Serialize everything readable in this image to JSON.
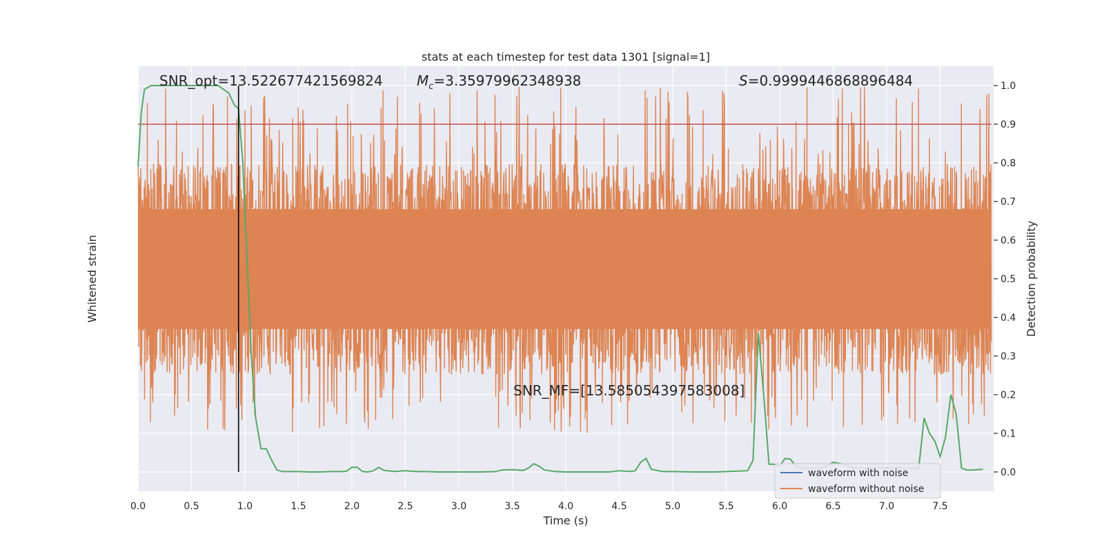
{
  "chart_data": {
    "type": "line",
    "title": "stats at each timestep for test data 1301 [signal=1]",
    "xlabel": "Time (s)",
    "ylabel_left": "Whitened strain",
    "ylabel_right": "Detection probability",
    "xlim": [
      0.0,
      8.0
    ],
    "ylim_right": [
      -0.05,
      1.05
    ],
    "x_ticks": [
      0.0,
      0.5,
      1.0,
      1.5,
      2.0,
      2.5,
      3.0,
      3.5,
      4.0,
      4.5,
      5.0,
      5.5,
      6.0,
      6.5,
      7.0,
      7.5
    ],
    "x_tick_labels": [
      "0.0",
      "0.5",
      "1.0",
      "1.5",
      "2.0",
      "2.5",
      "3.0",
      "3.5",
      "4.0",
      "4.5",
      "5.0",
      "5.5",
      "6.0",
      "6.5",
      "7.0",
      "7.5"
    ],
    "y_right_ticks": [
      0.0,
      0.1,
      0.2,
      0.3,
      0.4,
      0.5,
      0.6,
      0.7,
      0.8,
      0.9,
      1.0
    ],
    "y_right_tick_labels": [
      "0.0",
      "0.1",
      "0.2",
      "0.3",
      "0.4",
      "0.5",
      "0.6",
      "0.7",
      "0.8",
      "0.9",
      "1.0"
    ],
    "grid": true,
    "legend_position": "bottom-right",
    "annotations": {
      "snr_opt": "SNR_opt=13.522677421569824",
      "mc_symbol": "M",
      "mc_sub": "c",
      "mc_value": "=3.35979962348938",
      "s_symbol": "S",
      "s_value": "=0.9999446868896484",
      "snr_mf": "SNR_MF=[13.585054397583008]"
    },
    "threshold": 0.9,
    "vertical_marker_x": 0.94,
    "strain_series": [
      {
        "name": "waveform with noise",
        "color": "#4c72b0"
      },
      {
        "name": "waveform without noise",
        "color": "#dd8452"
      }
    ],
    "probability_series": {
      "color": "#55a868",
      "x": [
        0.0,
        0.03,
        0.06,
        0.12,
        0.2,
        0.3,
        0.4,
        0.5,
        0.6,
        0.7,
        0.75,
        0.8,
        0.85,
        0.9,
        0.94,
        0.98,
        1.02,
        1.06,
        1.1,
        1.15,
        1.2,
        1.25,
        1.3,
        1.35,
        1.4,
        1.5,
        1.6,
        1.7,
        1.8,
        1.9,
        1.95,
        2.0,
        2.05,
        2.1,
        2.15,
        2.2,
        2.25,
        2.3,
        2.4,
        2.5,
        2.6,
        2.7,
        2.8,
        2.9,
        3.0,
        3.2,
        3.35,
        3.4,
        3.5,
        3.6,
        3.65,
        3.7,
        3.75,
        3.8,
        3.9,
        4.0,
        4.2,
        4.4,
        4.5,
        4.6,
        4.65,
        4.7,
        4.75,
        4.8,
        4.9,
        5.0,
        5.2,
        5.4,
        5.5,
        5.6,
        5.7,
        5.75,
        5.8,
        5.85,
        5.9,
        5.95,
        6.0,
        6.05,
        6.1,
        6.15,
        6.2,
        6.3,
        6.4,
        6.5,
        6.6,
        6.7,
        6.8,
        6.9,
        7.0,
        7.1,
        7.2,
        7.3,
        7.35,
        7.4,
        7.45,
        7.5,
        7.55,
        7.6,
        7.65,
        7.7,
        7.75,
        7.8,
        7.85,
        7.9
      ],
      "y": [
        0.79,
        0.93,
        0.99,
        1.0,
        1.0,
        1.0,
        1.0,
        1.0,
        1.0,
        1.0,
        1.0,
        0.99,
        0.98,
        0.95,
        0.94,
        0.8,
        0.55,
        0.3,
        0.14,
        0.06,
        0.06,
        0.03,
        0.005,
        0.001,
        0.001,
        0.001,
        0.0,
        0.0,
        0.001,
        0.001,
        0.002,
        0.012,
        0.012,
        0.001,
        0.0,
        0.003,
        0.012,
        0.004,
        0.001,
        0.003,
        0.001,
        0.001,
        0.0,
        0.0,
        0.0,
        0.0,
        0.001,
        0.005,
        0.006,
        0.004,
        0.01,
        0.021,
        0.015,
        0.005,
        0.001,
        0.0,
        0.0,
        0.0,
        0.003,
        0.001,
        0.003,
        0.025,
        0.035,
        0.007,
        0.001,
        0.001,
        0.0,
        0.0,
        0.001,
        0.002,
        0.003,
        0.03,
        0.36,
        0.2,
        0.02,
        0.02,
        0.016,
        0.035,
        0.033,
        0.015,
        0.01,
        0.01,
        0.01,
        0.025,
        0.02,
        0.01,
        0.01,
        0.01,
        0.01,
        0.01,
        0.01,
        0.01,
        0.14,
        0.1,
        0.08,
        0.04,
        0.09,
        0.2,
        0.15,
        0.01,
        0.005,
        0.005,
        0.006,
        0.007
      ]
    },
    "strain_envelope": {
      "note_free": true,
      "core_low": 0.35,
      "core_high": 0.7,
      "band_low": 0.22,
      "band_high": 0.82
    }
  },
  "legend": {
    "items": [
      {
        "label": "waveform with noise",
        "color": "#4c72b0"
      },
      {
        "label": "waveform without noise",
        "color": "#dd8452"
      }
    ]
  }
}
